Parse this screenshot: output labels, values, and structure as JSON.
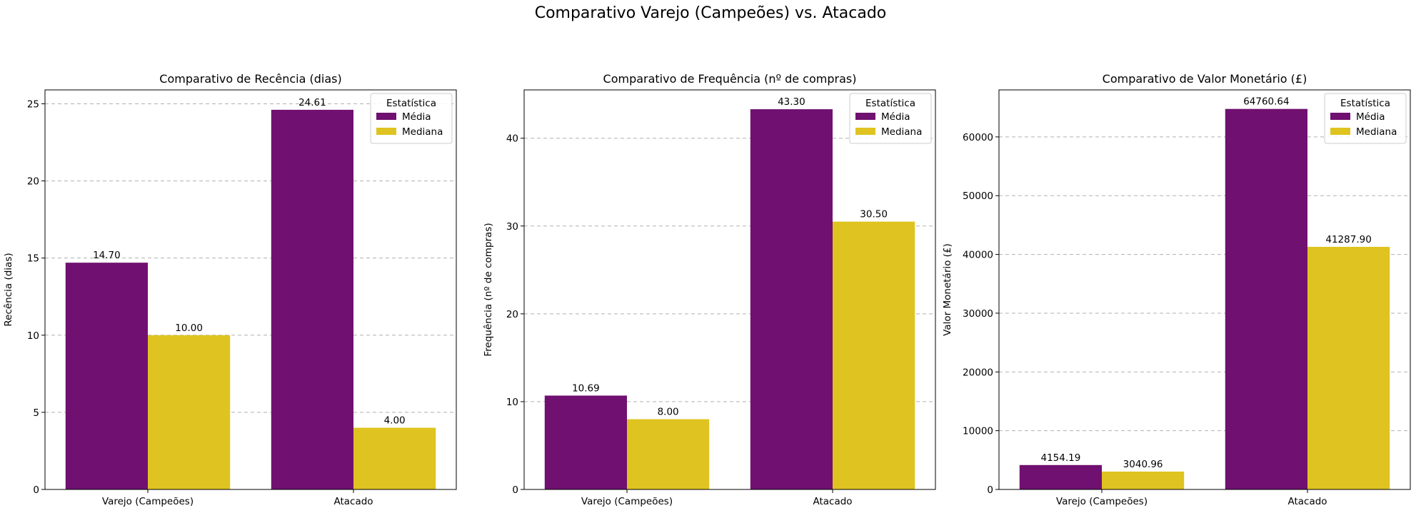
{
  "suptitle": "Comparativo Varejo (Campeões) vs. Atacado",
  "colors": {
    "media": "#701070",
    "mediana": "#dfc320"
  },
  "chart_data": [
    {
      "type": "bar",
      "title": "Comparativo de Recência (dias)",
      "xlabel": "",
      "ylabel": "Recência (dias)",
      "categories": [
        "Varejo (Campeões)",
        "Atacado"
      ],
      "series": [
        {
          "name": "Média",
          "values": [
            14.7,
            24.61
          ]
        },
        {
          "name": "Mediana",
          "values": [
            10.0,
            4.0
          ]
        }
      ],
      "ylim": [
        0,
        25.9
      ],
      "yticks": [
        0,
        5,
        10,
        15,
        20,
        25
      ],
      "data_labels": [
        [
          "14.70",
          "24.61"
        ],
        [
          "10.00",
          "4.00"
        ]
      ],
      "legend": {
        "title": "Estatística",
        "placement": "top-right"
      },
      "grid": "y-dashed"
    },
    {
      "type": "bar",
      "title": "Comparativo de Frequência (nº de compras)",
      "xlabel": "",
      "ylabel": "Frequência (nº de compras)",
      "categories": [
        "Varejo (Campeões)",
        "Atacado"
      ],
      "series": [
        {
          "name": "Média",
          "values": [
            10.69,
            43.3
          ]
        },
        {
          "name": "Mediana",
          "values": [
            8.0,
            30.5
          ]
        }
      ],
      "ylim": [
        0,
        45.5
      ],
      "yticks": [
        0,
        10,
        20,
        30,
        40
      ],
      "data_labels": [
        [
          "10.69",
          "43.30"
        ],
        [
          "8.00",
          "30.50"
        ]
      ],
      "legend": {
        "title": "Estatística",
        "placement": "top-right"
      },
      "grid": "y-dashed"
    },
    {
      "type": "bar",
      "title": "Comparativo de Valor Monetário (£)",
      "xlabel": "",
      "ylabel": "Valor Monetário (£)",
      "categories": [
        "Varejo (Campeões)",
        "Atacado"
      ],
      "series": [
        {
          "name": "Média",
          "values": [
            4154.19,
            64760.64
          ]
        },
        {
          "name": "Mediana",
          "values": [
            3040.96,
            41287.9
          ]
        }
      ],
      "ylim": [
        0,
        68000
      ],
      "yticks": [
        0,
        10000,
        20000,
        30000,
        40000,
        50000,
        60000
      ],
      "data_labels": [
        [
          "4154.19",
          "64760.64"
        ],
        [
          "3040.96",
          "41287.90"
        ]
      ],
      "legend": {
        "title": "Estatística",
        "placement": "top-right"
      },
      "grid": "y-dashed"
    }
  ]
}
